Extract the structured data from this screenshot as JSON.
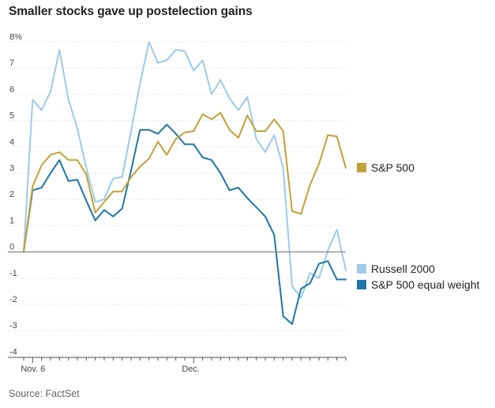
{
  "chart_data": {
    "type": "line",
    "title": "Smaller stocks gave up postelection gains",
    "source": "Source: FactSet",
    "ylabel": "%",
    "ylim": [
      -4,
      8
    ],
    "yticks": [
      -4,
      -3,
      -2,
      -1,
      0,
      1,
      2,
      3,
      4,
      5,
      6,
      7,
      8
    ],
    "ytick_labels": [
      "-4",
      "-3",
      "-2",
      "-1",
      "0",
      "1",
      "2",
      "3",
      "4",
      "5",
      "6",
      "7",
      "8%"
    ],
    "xlabels": [
      {
        "index": 1,
        "label": "Nov. 6"
      },
      {
        "index": 19,
        "label": "Dec."
      }
    ],
    "n_points": 37,
    "grid": true,
    "colors": {
      "S&P 500": "#c1a13a",
      "Russell 2000": "#9ecae9",
      "S&P 500 equal weight": "#1f77a6",
      "grid": "#dcdcdc",
      "zero": "#888888"
    },
    "series": [
      {
        "name": "Russell 2000",
        "color": "#9ecae9",
        "values": [
          0,
          5.8,
          5.4,
          6.1,
          7.7,
          5.8,
          4.7,
          3.2,
          1.9,
          2.0,
          2.8,
          2.85,
          4.6,
          6.4,
          8.0,
          7.2,
          7.3,
          7.7,
          7.65,
          6.9,
          7.3,
          6.0,
          6.55,
          5.85,
          5.4,
          5.9,
          4.3,
          3.8,
          4.45,
          3.2,
          -1.3,
          -1.75,
          -0.8,
          -1.0,
          0.05,
          0.85,
          -0.7
        ]
      },
      {
        "name": "S&P 500 equal weight",
        "color": "#1f77a6",
        "values": [
          0,
          2.35,
          2.45,
          3.0,
          3.5,
          2.7,
          2.75,
          1.95,
          1.2,
          1.6,
          1.35,
          1.65,
          3.1,
          4.65,
          4.65,
          4.5,
          4.85,
          4.5,
          4.1,
          4.1,
          3.6,
          3.5,
          3.0,
          2.35,
          2.45,
          2.05,
          1.7,
          1.35,
          0.65,
          -2.45,
          -2.75,
          -1.4,
          -1.2,
          -0.45,
          -0.35,
          -1.05,
          -1.05
        ]
      },
      {
        "name": "S&P 500",
        "color": "#c1a13a",
        "values": [
          0,
          2.5,
          3.3,
          3.7,
          3.8,
          3.5,
          3.5,
          2.95,
          1.5,
          1.9,
          2.3,
          2.3,
          2.85,
          3.25,
          3.55,
          4.2,
          3.7,
          4.3,
          4.55,
          4.6,
          5.25,
          5.05,
          5.3,
          4.65,
          4.35,
          5.2,
          4.6,
          4.6,
          5.05,
          4.6,
          1.55,
          1.45,
          2.55,
          3.35,
          4.45,
          4.4,
          3.2
        ]
      }
    ],
    "legend": [
      {
        "name": "S&P 500",
        "color": "#c1a13a"
      },
      {
        "name": "Russell 2000",
        "color": "#9ecae9"
      },
      {
        "name": "S&P 500 equal weight",
        "color": "#1f77a6"
      }
    ]
  }
}
